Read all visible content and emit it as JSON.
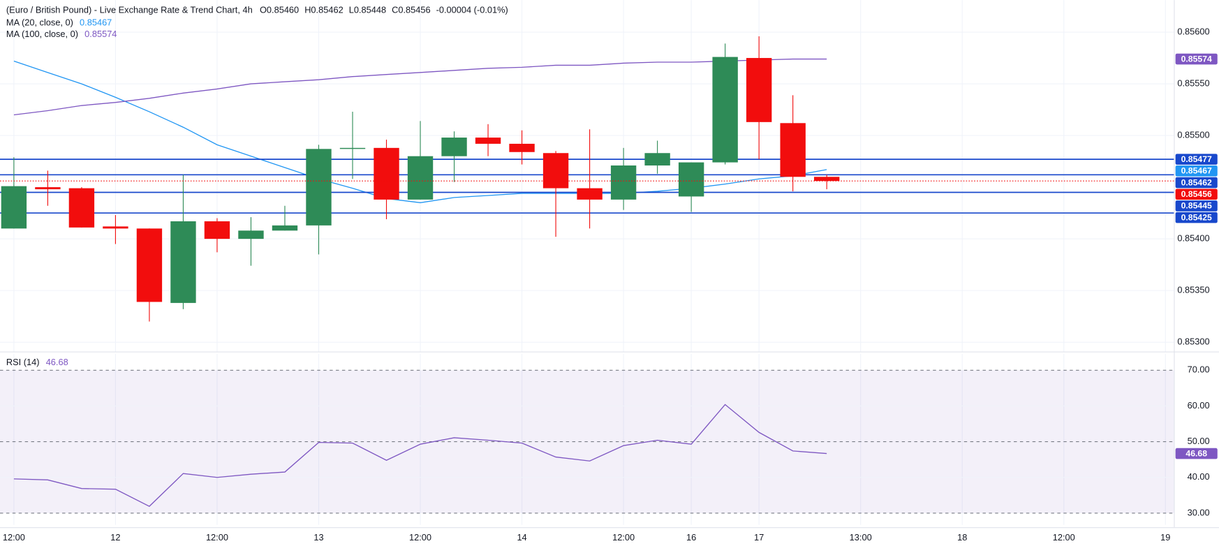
{
  "header": {
    "title": "(Euro / British Pound) - Live Exchange Rate & Trend Chart, 4h",
    "ohlc": [
      "O0.85460",
      "H0.85462",
      "L0.85448",
      "C0.85456",
      "-0.00004 (-0.01%)"
    ]
  },
  "chart_data": [
    {
      "type": "candlestick",
      "x": [
        0,
        1,
        2,
        3,
        4,
        5,
        6,
        7,
        8,
        9,
        10,
        11,
        12,
        13,
        14,
        15,
        16,
        17,
        18,
        19,
        20,
        21,
        22,
        23,
        24
      ],
      "open": [
        0.8541,
        0.8545,
        0.85449,
        0.85412,
        0.8541,
        0.85338,
        0.85417,
        0.854,
        0.85408,
        0.85413,
        0.85487,
        0.85488,
        0.85438,
        0.8548,
        0.85498,
        0.85492,
        0.85483,
        0.85449,
        0.85438,
        0.85471,
        0.85441,
        0.85474,
        0.85575,
        0.85512,
        0.8546
      ],
      "high": [
        0.85479,
        0.85466,
        0.8545,
        0.85423,
        0.8541,
        0.85462,
        0.8542,
        0.85421,
        0.85432,
        0.85491,
        0.85523,
        0.85496,
        0.85514,
        0.85504,
        0.85511,
        0.85505,
        0.85485,
        0.85506,
        0.85488,
        0.85495,
        0.85474,
        0.85589,
        0.85596,
        0.85539,
        0.85462
      ],
      "low": [
        0.8541,
        0.85432,
        0.85411,
        0.85395,
        0.8532,
        0.85332,
        0.85387,
        0.85374,
        0.85408,
        0.85385,
        0.85458,
        0.85419,
        0.85438,
        0.85455,
        0.8548,
        0.85472,
        0.85402,
        0.8541,
        0.85428,
        0.85463,
        0.85426,
        0.85472,
        0.85477,
        0.85446,
        0.85448
      ],
      "close": [
        0.85451,
        0.85448,
        0.85411,
        0.8541,
        0.85339,
        0.85417,
        0.854,
        0.85408,
        0.85413,
        0.85487,
        0.85488,
        0.85438,
        0.8548,
        0.85498,
        0.85492,
        0.85484,
        0.85449,
        0.85438,
        0.85471,
        0.85483,
        0.85474,
        0.85576,
        0.85513,
        0.8546,
        0.85456
      ],
      "up_color": "#2e8b57",
      "down_color": "#f20d0d",
      "series": [
        {
          "name": "MA (20, close, 0)",
          "color": "#2196f3",
          "values": [
            0.85572,
            0.85561,
            0.8555,
            0.85537,
            0.85523,
            0.85508,
            0.85491,
            0.8548,
            0.85469,
            0.85458,
            0.85449,
            0.85439,
            0.85435,
            0.8544,
            0.85442,
            0.85444,
            0.85444,
            0.85444,
            0.85444,
            0.85446,
            0.85449,
            0.85453,
            0.85458,
            0.85461,
            0.85467
          ]
        },
        {
          "name": "MA (100, close, 0)",
          "color": "#7e57c2",
          "values": [
            0.8552,
            0.85524,
            0.85529,
            0.85532,
            0.85536,
            0.85541,
            0.85545,
            0.8555,
            0.85552,
            0.85554,
            0.85557,
            0.85559,
            0.85561,
            0.85563,
            0.85565,
            0.85566,
            0.85568,
            0.85568,
            0.8557,
            0.85571,
            0.85571,
            0.85572,
            0.85573,
            0.85574,
            0.85574
          ]
        }
      ],
      "levels": {
        "color": "#1848cc",
        "values": [
          0.85477,
          0.85462,
          0.85445,
          0.85425
        ]
      },
      "xlim": [
        -0.41,
        34.25
      ],
      "xticks": [
        {
          "value": 0,
          "label": "12:00"
        },
        {
          "value": 3,
          "label": "12"
        },
        {
          "value": 6,
          "label": "12:00"
        },
        {
          "value": 9,
          "label": "13"
        },
        {
          "value": 12,
          "label": "12:00"
        },
        {
          "value": 15,
          "label": "14"
        },
        {
          "value": 18,
          "label": "12:00"
        },
        {
          "value": 20,
          "label": "16"
        },
        {
          "value": 22,
          "label": "17"
        },
        {
          "value": 25,
          "label": "13:00"
        },
        {
          "value": 28,
          "label": "18"
        },
        {
          "value": 31,
          "label": "12:00"
        },
        {
          "value": 34,
          "label": "19"
        }
      ],
      "ylim": [
        0.85291,
        0.85631
      ],
      "yticks": [
        {
          "value": 0.856,
          "label": "0.85600"
        },
        {
          "value": 0.8555,
          "label": "0.85550"
        },
        {
          "value": 0.855,
          "label": "0.85500"
        },
        {
          "value": 0.854,
          "label": "0.85400"
        },
        {
          "value": 0.8535,
          "label": "0.85350"
        },
        {
          "value": 0.853,
          "label": "0.85300"
        }
      ],
      "grid": true
    },
    {
      "type": "line",
      "series": [
        {
          "name": "RSI (14)",
          "color": "#7e57c2",
          "values": [
            39.6,
            39.3,
            36.9,
            36.7,
            31.9,
            41.1,
            40.0,
            40.9,
            41.5,
            49.8,
            49.6,
            44.8,
            49.3,
            51.1,
            50.4,
            49.6,
            45.7,
            44.6,
            48.9,
            50.4,
            49.3,
            60.4,
            52.6,
            47.4,
            46.68
          ]
        }
      ],
      "ylim": [
        26.7,
        74.6
      ],
      "yticks": [
        {
          "value": 70,
          "label": "70.00"
        },
        {
          "value": 60,
          "label": "60.00"
        },
        {
          "value": 50,
          "label": "50.00"
        },
        {
          "value": 40,
          "label": "40.00"
        },
        {
          "value": 30,
          "label": "30.00"
        }
      ],
      "grid": true
    }
  ]
}
